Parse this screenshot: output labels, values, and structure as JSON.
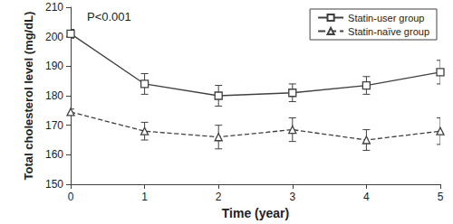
{
  "chart_data": {
    "type": "line",
    "x_label": "Time (year)",
    "y_label": "Total cholesterol level (mg/dL)",
    "annotation": "P<0.001",
    "x": [
      0,
      1,
      2,
      3,
      4,
      5
    ],
    "xlim": [
      0,
      5
    ],
    "xticks": [
      0,
      1,
      2,
      3,
      4,
      5
    ],
    "ylim": [
      150,
      210
    ],
    "yticks": [
      150,
      160,
      170,
      180,
      190,
      200,
      210
    ],
    "grid": false,
    "legend": "upper right",
    "series": [
      {
        "name": "Statin-user group",
        "color": "#404040",
        "marker": "square",
        "line_style": "solid",
        "values": [
          201,
          184,
          180,
          181,
          183.5,
          188
        ],
        "errors": [
          1.5,
          3.5,
          3.5,
          3,
          3,
          4
        ]
      },
      {
        "name": "Statin-naïve group",
        "color": "#404040",
        "marker": "triangle",
        "line_style": "dashed",
        "values": [
          174.5,
          168,
          166,
          168.5,
          165,
          168
        ],
        "errors": [
          1,
          3,
          4,
          4,
          3.5,
          4.5
        ]
      }
    ]
  }
}
